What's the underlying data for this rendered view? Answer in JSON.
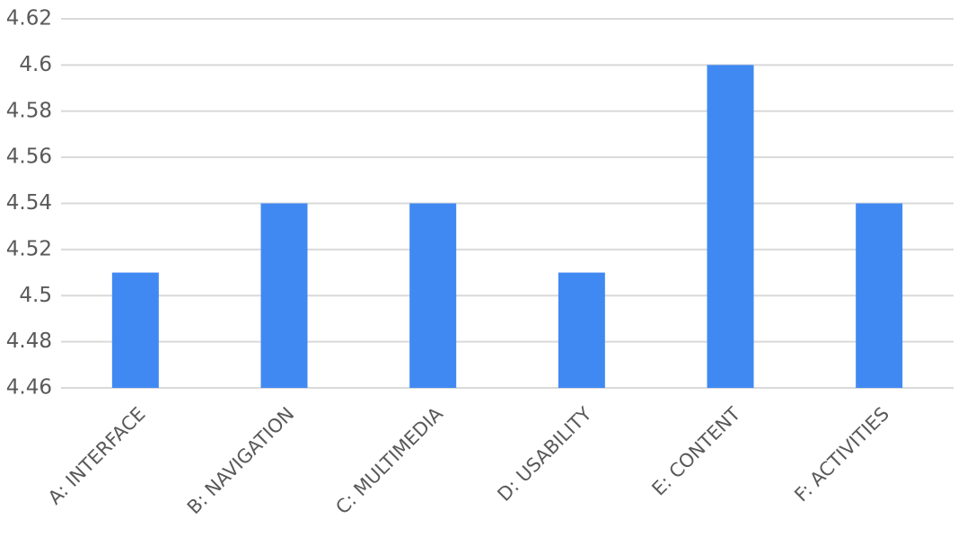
{
  "chart_data": {
    "type": "bar",
    "categories": [
      "A: INTERFACE",
      "B: NAVIGATION",
      "C: MULTIMEDIA",
      "D: USABILITY",
      "E: CONTENT",
      "F: ACTIVITIES"
    ],
    "values": [
      4.51,
      4.54,
      4.54,
      4.51,
      4.6,
      4.54
    ],
    "color": "#4189f2",
    "ylim": [
      4.46,
      4.62
    ],
    "yticks": [
      4.46,
      4.48,
      4.5,
      4.52,
      4.54,
      4.56,
      4.58,
      4.6,
      4.62
    ],
    "grid": true
  }
}
